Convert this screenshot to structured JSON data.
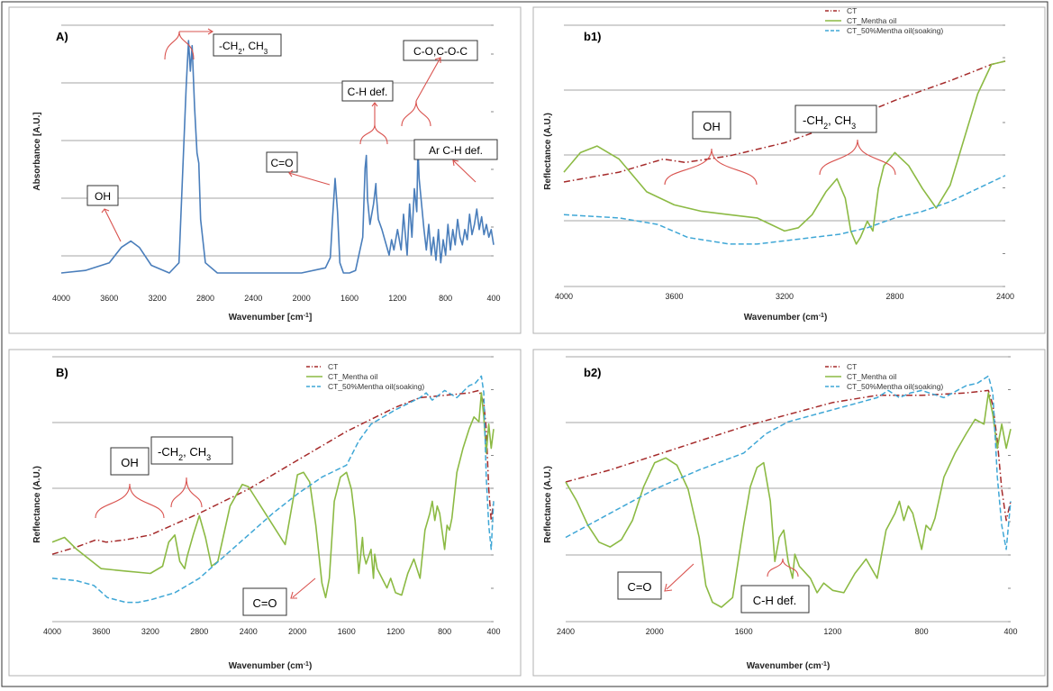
{
  "chart_data": [
    {
      "id": "A",
      "type": "line",
      "title": "A)",
      "xlabel": "Wavenumber [cm-1]",
      "ylabel": "Absorbance [A.U.]",
      "xlim": [
        4000,
        400
      ],
      "x_ticks": [
        "4000",
        "3600",
        "3200",
        "2800",
        "2400",
        "2000",
        "1600",
        "1200",
        "800",
        "400"
      ],
      "gridlines": 4,
      "series": [
        {
          "color": "#4a7ebb",
          "dash": "solid",
          "x": [
            4000,
            3800,
            3600,
            3500,
            3420,
            3350,
            3250,
            3100,
            3020,
            2960,
            2940,
            2925,
            2910,
            2890,
            2870,
            2855,
            2840,
            2800,
            2700,
            2400,
            2000,
            1800,
            1760,
            1740,
            1720,
            1700,
            1680,
            1650,
            1600,
            1550,
            1490,
            1470,
            1460,
            1450,
            1430,
            1400,
            1380,
            1377,
            1360,
            1330,
            1300,
            1270,
            1250,
            1230,
            1200,
            1170,
            1150,
            1120,
            1100,
            1080,
            1060,
            1040,
            1030,
            1020,
            1000,
            980,
            960,
            940,
            920,
            900,
            880,
            860,
            840,
            820,
            800,
            780,
            760,
            740,
            720,
            700,
            680,
            660,
            640,
            620,
            600,
            580,
            560,
            540,
            520,
            500,
            480,
            460,
            440,
            420,
            400
          ],
          "y": [
            0.01,
            0.02,
            0.05,
            0.11,
            0.135,
            0.11,
            0.04,
            0.01,
            0.05,
            0.74,
            0.92,
            0.8,
            0.9,
            0.66,
            0.48,
            0.44,
            0.22,
            0.05,
            0.01,
            0.01,
            0.01,
            0.03,
            0.07,
            0.23,
            0.38,
            0.25,
            0.05,
            0.01,
            0.01,
            0.02,
            0.15,
            0.42,
            0.47,
            0.3,
            0.2,
            0.28,
            0.36,
            0.32,
            0.22,
            0.18,
            0.13,
            0.08,
            0.14,
            0.1,
            0.18,
            0.1,
            0.24,
            0.08,
            0.28,
            0.15,
            0.34,
            0.25,
            0.5,
            0.38,
            0.28,
            0.18,
            0.1,
            0.2,
            0.08,
            0.15,
            0.06,
            0.18,
            0.05,
            0.14,
            0.08,
            0.2,
            0.1,
            0.18,
            0.12,
            0.22,
            0.15,
            0.12,
            0.18,
            0.14,
            0.24,
            0.16,
            0.2,
            0.26,
            0.18,
            0.23,
            0.16,
            0.2,
            0.15,
            0.18,
            0.12
          ]
        }
      ],
      "annotations": [
        {
          "label": "OH"
        },
        {
          "label": "-CH",
          "sub1": "2",
          "mid": ", CH",
          "sub2": "3"
        },
        {
          "label": "C=O"
        },
        {
          "label": "C-H def."
        },
        {
          "label": "C-O,C-O-C"
        },
        {
          "label": "Ar C-H def."
        }
      ]
    },
    {
      "id": "b1",
      "type": "line",
      "title": "b1)",
      "xlabel": "Wavenumber (cm-1)",
      "ylabel": "Reflectance (A.U.)",
      "xlim": [
        4000,
        2400
      ],
      "x_ticks": [
        "4000",
        "3600",
        "3200",
        "2800",
        "2400"
      ],
      "gridlines": 4,
      "legend": [
        "CT",
        "CT_Mentha oil",
        "CT_50%Mentha oil(soaking)"
      ],
      "series": [
        {
          "name": "CT",
          "color": "#a52a2a",
          "dash": "dashdot",
          "x": [
            4000,
            3800,
            3640,
            3560,
            3400,
            3200,
            3000,
            2800,
            2600,
            2450,
            2400
          ],
          "y": [
            0.57,
            0.6,
            0.64,
            0.63,
            0.65,
            0.69,
            0.75,
            0.82,
            0.88,
            0.93,
            0.94
          ]
        },
        {
          "name": "CT_Mentha oil",
          "color": "#8cba44",
          "dash": "solid",
          "x": [
            4000,
            3940,
            3880,
            3800,
            3700,
            3600,
            3500,
            3400,
            3300,
            3250,
            3200,
            3150,
            3100,
            3050,
            3010,
            2980,
            2960,
            2940,
            2925,
            2900,
            2880,
            2860,
            2840,
            2800,
            2750,
            2700,
            2650,
            2600,
            2550,
            2500,
            2450,
            2400
          ],
          "y": [
            0.6,
            0.66,
            0.68,
            0.64,
            0.54,
            0.5,
            0.48,
            0.47,
            0.46,
            0.44,
            0.42,
            0.43,
            0.47,
            0.54,
            0.58,
            0.52,
            0.42,
            0.38,
            0.4,
            0.45,
            0.42,
            0.55,
            0.62,
            0.66,
            0.62,
            0.55,
            0.49,
            0.56,
            0.7,
            0.84,
            0.93,
            0.94
          ]
        },
        {
          "name": "CT_50%Mentha oil(soaking)",
          "color": "#3fa7d6",
          "dash": "dashed",
          "x": [
            4000,
            3800,
            3660,
            3550,
            3400,
            3300,
            3200,
            3100,
            3000,
            2900,
            2800,
            2700,
            2600,
            2500,
            2400
          ],
          "y": [
            0.47,
            0.46,
            0.44,
            0.4,
            0.38,
            0.38,
            0.39,
            0.4,
            0.41,
            0.43,
            0.46,
            0.48,
            0.51,
            0.55,
            0.59
          ]
        }
      ],
      "annotations": [
        {
          "label": "OH"
        },
        {
          "label": "-CH",
          "sub1": "2",
          "mid": ", CH",
          "sub2": "3"
        }
      ]
    },
    {
      "id": "B",
      "type": "line",
      "title": "B)",
      "xlabel": "Wavenumber (cm-1)",
      "ylabel": "Reflectance (A.U.)",
      "xlim": [
        4000,
        400
      ],
      "x_ticks": [
        "4000",
        "3600",
        "3200",
        "2800",
        "2400",
        "2000",
        "1600",
        "1200",
        "800",
        "400"
      ],
      "gridlines": 4,
      "legend": [
        "CT",
        "CT_Mentha oil",
        "CT_50%Mentha oil(soaking)"
      ],
      "series": [
        {
          "name": "CT",
          "color": "#a52a2a",
          "dash": "dashdot",
          "x": [
            4000,
            3800,
            3640,
            3560,
            3400,
            3200,
            2800,
            2400,
            2000,
            1600,
            1200,
            1000,
            800,
            600,
            520,
            480,
            460,
            440,
            420,
            400
          ],
          "y": [
            0.28,
            0.31,
            0.34,
            0.33,
            0.34,
            0.36,
            0.45,
            0.55,
            0.67,
            0.79,
            0.89,
            0.93,
            0.94,
            0.95,
            0.96,
            0.91,
            0.8,
            0.55,
            0.42,
            0.5
          ]
        },
        {
          "name": "CT_Mentha oil",
          "color": "#8cba44",
          "dash": "solid",
          "x": [
            4000,
            3900,
            3800,
            3600,
            3400,
            3200,
            3100,
            3050,
            3000,
            2960,
            2920,
            2900,
            2850,
            2800,
            2750,
            2700,
            2650,
            2550,
            2450,
            2400,
            2350,
            2300,
            2200,
            2100,
            2000,
            1950,
            1900,
            1850,
            1800,
            1770,
            1740,
            1700,
            1650,
            1600,
            1560,
            1530,
            1500,
            1470,
            1460,
            1440,
            1400,
            1380,
            1370,
            1350,
            1300,
            1270,
            1240,
            1200,
            1150,
            1100,
            1050,
            1000,
            960,
            920,
            900,
            880,
            860,
            840,
            800,
            780,
            760,
            740,
            700,
            650,
            600,
            560,
            520,
            500,
            480,
            460,
            440,
            420,
            400
          ],
          "y": [
            0.33,
            0.35,
            0.3,
            0.22,
            0.21,
            0.2,
            0.23,
            0.33,
            0.36,
            0.25,
            0.22,
            0.27,
            0.36,
            0.44,
            0.35,
            0.23,
            0.25,
            0.48,
            0.57,
            0.56,
            0.52,
            0.48,
            0.4,
            0.32,
            0.61,
            0.62,
            0.58,
            0.4,
            0.16,
            0.1,
            0.18,
            0.5,
            0.6,
            0.62,
            0.55,
            0.42,
            0.2,
            0.35,
            0.28,
            0.24,
            0.3,
            0.18,
            0.28,
            0.22,
            0.17,
            0.14,
            0.18,
            0.12,
            0.11,
            0.2,
            0.26,
            0.18,
            0.38,
            0.45,
            0.5,
            0.42,
            0.48,
            0.45,
            0.3,
            0.4,
            0.38,
            0.43,
            0.62,
            0.72,
            0.8,
            0.85,
            0.83,
            0.95,
            0.85,
            0.7,
            0.82,
            0.72,
            0.8
          ]
        },
        {
          "name": "CT_50%Mentha oil(soaking)",
          "color": "#3fa7d6",
          "dash": "dashed",
          "x": [
            4000,
            3800,
            3660,
            3550,
            3400,
            3300,
            3200,
            3000,
            2800,
            2600,
            2400,
            2200,
            2000,
            1800,
            1600,
            1500,
            1400,
            1200,
            1000,
            950,
            900,
            850,
            800,
            700,
            600,
            550,
            500,
            480,
            460,
            440,
            420,
            400
          ],
          "y": [
            0.18,
            0.17,
            0.15,
            0.1,
            0.08,
            0.08,
            0.09,
            0.12,
            0.18,
            0.27,
            0.36,
            0.45,
            0.53,
            0.6,
            0.65,
            0.75,
            0.82,
            0.88,
            0.93,
            0.95,
            0.92,
            0.94,
            0.96,
            0.93,
            0.98,
            0.99,
            1.02,
            0.95,
            0.6,
            0.4,
            0.3,
            0.5
          ]
        }
      ],
      "annotations": [
        {
          "label": "OH"
        },
        {
          "label": "-CH",
          "sub1": "2",
          "mid": ", CH",
          "sub2": "3"
        },
        {
          "label": "C=O"
        }
      ]
    },
    {
      "id": "b2",
      "type": "line",
      "title": "b2)",
      "xlabel": "Wavenumber (cm-1)",
      "ylabel": "Reflectance (A.U.)",
      "xlim": [
        2400,
        400
      ],
      "x_ticks": [
        "2400",
        "2000",
        "1600",
        "1200",
        "800",
        "400"
      ],
      "gridlines": 4,
      "legend": [
        "CT",
        "CT_Mentha oil",
        "CT_50%Mentha oil(soaking)"
      ],
      "series": [
        {
          "name": "CT",
          "color": "#a52a2a",
          "dash": "dashdot",
          "x": [
            2400,
            2200,
            2000,
            1800,
            1600,
            1400,
            1200,
            1000,
            800,
            600,
            500,
            480,
            460,
            440,
            420,
            400
          ],
          "y": [
            0.58,
            0.63,
            0.69,
            0.75,
            0.81,
            0.86,
            0.91,
            0.94,
            0.94,
            0.95,
            0.96,
            0.9,
            0.75,
            0.55,
            0.42,
            0.5
          ]
        },
        {
          "name": "CT_Mentha oil",
          "color": "#8cba44",
          "dash": "solid",
          "x": [
            2400,
            2350,
            2300,
            2250,
            2200,
            2150,
            2100,
            2050,
            2000,
            1950,
            1900,
            1850,
            1800,
            1770,
            1740,
            1700,
            1650,
            1600,
            1570,
            1540,
            1510,
            1480,
            1460,
            1440,
            1420,
            1400,
            1380,
            1370,
            1350,
            1300,
            1270,
            1240,
            1200,
            1150,
            1100,
            1050,
            1000,
            960,
            920,
            900,
            880,
            860,
            840,
            800,
            780,
            760,
            740,
            700,
            650,
            600,
            560,
            520,
            500,
            480,
            460,
            440,
            420,
            400
          ],
          "y": [
            0.58,
            0.5,
            0.4,
            0.33,
            0.31,
            0.34,
            0.42,
            0.56,
            0.66,
            0.68,
            0.65,
            0.55,
            0.35,
            0.15,
            0.08,
            0.06,
            0.1,
            0.4,
            0.56,
            0.64,
            0.66,
            0.5,
            0.25,
            0.35,
            0.38,
            0.25,
            0.18,
            0.28,
            0.23,
            0.18,
            0.12,
            0.16,
            0.13,
            0.12,
            0.2,
            0.26,
            0.18,
            0.38,
            0.45,
            0.5,
            0.42,
            0.48,
            0.45,
            0.3,
            0.4,
            0.38,
            0.43,
            0.6,
            0.7,
            0.78,
            0.84,
            0.82,
            0.95,
            0.86,
            0.72,
            0.82,
            0.72,
            0.8
          ]
        },
        {
          "name": "CT_50%Mentha oil(soaking)",
          "color": "#3fa7d6",
          "dash": "dashed",
          "x": [
            2400,
            2200,
            2000,
            1800,
            1600,
            1500,
            1400,
            1200,
            1000,
            950,
            900,
            850,
            800,
            700,
            600,
            550,
            500,
            480,
            460,
            440,
            420,
            400
          ],
          "y": [
            0.35,
            0.45,
            0.55,
            0.63,
            0.7,
            0.78,
            0.83,
            0.88,
            0.93,
            0.96,
            0.93,
            0.95,
            0.96,
            0.93,
            0.98,
            0.99,
            1.02,
            0.95,
            0.6,
            0.4,
            0.3,
            0.5
          ]
        }
      ],
      "annotations": [
        {
          "label": "C=O"
        },
        {
          "label": "C-H def."
        }
      ]
    }
  ]
}
